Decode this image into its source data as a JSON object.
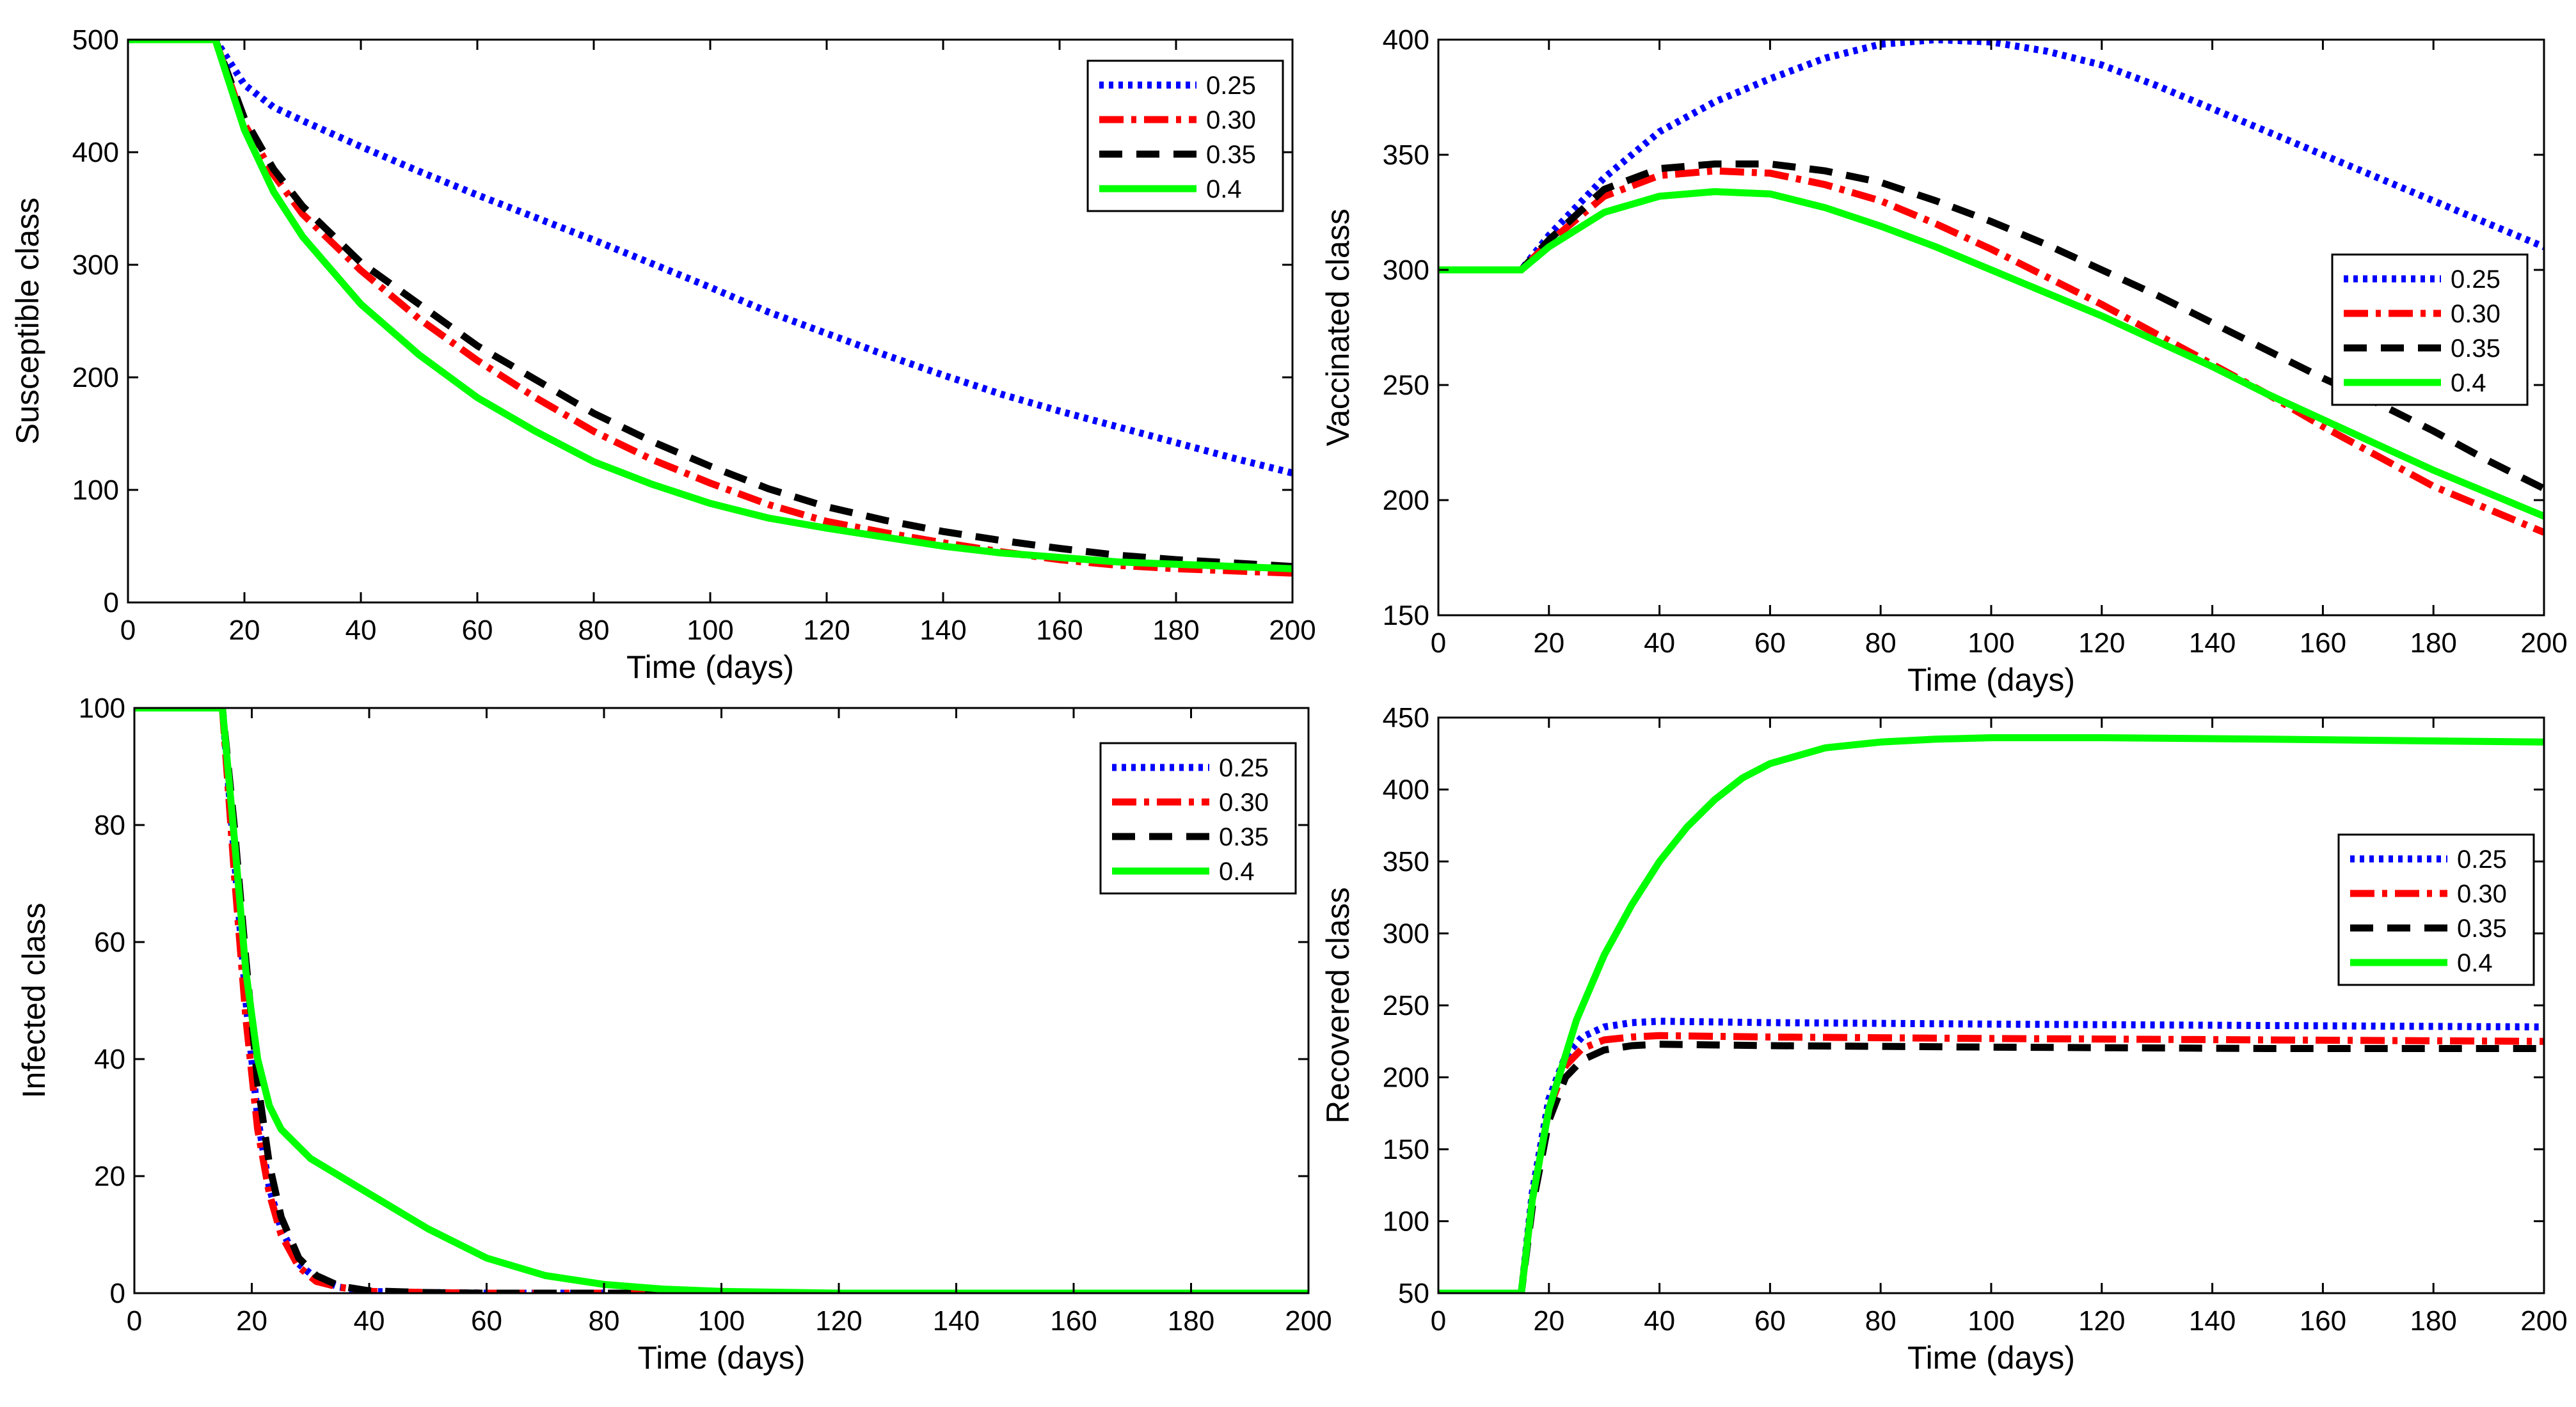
{
  "colors": [
    "#0000ff",
    "#ff0000",
    "#000000",
    "#00ff00"
  ],
  "line_styles": [
    "dotted",
    "dashdot",
    "dashed",
    "solid"
  ],
  "chart_data": [
    {
      "type": "line",
      "name": "susceptible",
      "title": "",
      "xlabel": "Time  (days)",
      "ylabel": "Susceptible class",
      "xlim": [
        0,
        200
      ],
      "ylim": [
        0,
        500
      ],
      "xticks": [
        0,
        20,
        40,
        60,
        80,
        100,
        120,
        140,
        160,
        180,
        200
      ],
      "yticks": [
        0,
        100,
        200,
        300,
        400,
        500
      ],
      "legend_position": "top-right",
      "series": [
        {
          "name": "0.25",
          "x": [
            0,
            15,
            20,
            25,
            30,
            40,
            50,
            60,
            70,
            80,
            90,
            100,
            110,
            120,
            130,
            140,
            150,
            160,
            170,
            180,
            190,
            200
          ],
          "values": [
            500,
            500,
            460,
            440,
            428,
            405,
            383,
            362,
            342,
            322,
            301,
            280,
            258,
            239,
            220,
            202,
            185,
            170,
            156,
            142,
            128,
            115
          ]
        },
        {
          "name": "0.30",
          "x": [
            0,
            15,
            20,
            25,
            30,
            40,
            50,
            60,
            70,
            80,
            90,
            100,
            110,
            120,
            130,
            140,
            150,
            160,
            170,
            180,
            190,
            200
          ],
          "values": [
            500,
            500,
            425,
            380,
            345,
            295,
            252,
            215,
            182,
            152,
            127,
            106,
            87,
            72,
            62,
            53,
            45,
            38,
            33,
            30,
            28,
            26
          ]
        },
        {
          "name": "0.35",
          "x": [
            0,
            15,
            20,
            25,
            30,
            40,
            50,
            60,
            70,
            80,
            90,
            100,
            110,
            120,
            130,
            140,
            150,
            160,
            170,
            180,
            190,
            200
          ],
          "values": [
            500,
            500,
            430,
            385,
            352,
            302,
            265,
            228,
            198,
            168,
            143,
            121,
            101,
            85,
            73,
            63,
            55,
            48,
            42,
            38,
            35,
            32
          ]
        },
        {
          "name": "0.4",
          "x": [
            0,
            15,
            20,
            25,
            30,
            40,
            50,
            60,
            70,
            80,
            90,
            100,
            110,
            120,
            130,
            140,
            150,
            160,
            170,
            180,
            190,
            200
          ],
          "values": [
            500,
            500,
            420,
            365,
            325,
            265,
            220,
            182,
            152,
            125,
            105,
            88,
            75,
            66,
            58,
            50,
            44,
            40,
            36,
            34,
            32,
            30
          ]
        }
      ]
    },
    {
      "type": "line",
      "name": "vaccinated",
      "title": "",
      "xlabel": "Time (days)",
      "ylabel": "Vaccinated class",
      "xlim": [
        0,
        200
      ],
      "ylim": [
        150,
        400
      ],
      "xticks": [
        0,
        20,
        40,
        60,
        80,
        100,
        120,
        140,
        160,
        180,
        200
      ],
      "yticks": [
        150,
        200,
        250,
        300,
        350,
        400
      ],
      "legend_position": "middle-right",
      "series": [
        {
          "name": "0.25",
          "x": [
            0,
            15,
            20,
            30,
            40,
            50,
            60,
            70,
            80,
            90,
            100,
            110,
            120,
            130,
            140,
            150,
            160,
            170,
            180,
            190,
            200
          ],
          "values": [
            300,
            300,
            315,
            340,
            360,
            373,
            383,
            392,
            398,
            400,
            399,
            395,
            389,
            380,
            370,
            360,
            350,
            340,
            330,
            320,
            310
          ]
        },
        {
          "name": "0.30",
          "x": [
            0,
            15,
            20,
            30,
            40,
            50,
            60,
            70,
            80,
            90,
            100,
            110,
            120,
            130,
            140,
            150,
            160,
            170,
            180,
            190,
            200
          ],
          "values": [
            300,
            300,
            312,
            332,
            341,
            343,
            342,
            337,
            330,
            320,
            309,
            297,
            285,
            272,
            259,
            246,
            232,
            219,
            206,
            196,
            186
          ]
        },
        {
          "name": "0.35",
          "x": [
            0,
            15,
            20,
            30,
            40,
            50,
            60,
            70,
            80,
            90,
            100,
            110,
            120,
            130,
            140,
            150,
            160,
            170,
            180,
            190,
            200
          ],
          "values": [
            300,
            300,
            313,
            335,
            344,
            346,
            346,
            343,
            338,
            330,
            321,
            311,
            300,
            289,
            277,
            265,
            253,
            242,
            230,
            217,
            205
          ]
        },
        {
          "name": "0.4",
          "x": [
            0,
            15,
            20,
            30,
            40,
            50,
            60,
            70,
            80,
            90,
            100,
            110,
            120,
            130,
            140,
            150,
            160,
            170,
            180,
            190,
            200
          ],
          "values": [
            300,
            300,
            310,
            325,
            332,
            334,
            333,
            327,
            319,
            310,
            300,
            290,
            280,
            269,
            258,
            246,
            235,
            224,
            213,
            203,
            193
          ]
        }
      ]
    },
    {
      "type": "line",
      "name": "infected",
      "title": "",
      "xlabel": "Time (days)",
      "ylabel": "Infected class",
      "xlim": [
        0,
        200
      ],
      "ylim": [
        0,
        100
      ],
      "xticks": [
        0,
        20,
        40,
        60,
        80,
        100,
        120,
        140,
        160,
        180,
        200
      ],
      "yticks": [
        0,
        20,
        40,
        60,
        80,
        100
      ],
      "legend_position": "top-right",
      "series": [
        {
          "name": "0.25",
          "x": [
            0,
            15,
            17,
            19,
            21,
            23,
            25,
            28,
            31,
            35,
            40,
            50,
            60,
            80,
            100,
            150,
            200
          ],
          "values": [
            100,
            100,
            75,
            50,
            30,
            18,
            11,
            5,
            2.5,
            1,
            0.3,
            0.1,
            0,
            0,
            0,
            0,
            0
          ]
        },
        {
          "name": "0.30",
          "x": [
            0,
            15,
            17,
            19,
            21,
            23,
            25,
            28,
            31,
            35,
            40,
            50,
            60,
            80,
            100,
            150,
            200
          ],
          "values": [
            100,
            100,
            72,
            47,
            28,
            17,
            10,
            4.5,
            2,
            1,
            0.3,
            0.1,
            0,
            0,
            0,
            0,
            0
          ]
        },
        {
          "name": "0.35",
          "x": [
            0,
            15,
            17,
            19,
            21,
            23,
            25,
            28,
            31,
            35,
            40,
            50,
            60,
            80,
            100,
            150,
            200
          ],
          "values": [
            100,
            100,
            80,
            57,
            36,
            22,
            13,
            6,
            3,
            1.2,
            0.4,
            0.1,
            0,
            0,
            0,
            0,
            0
          ]
        },
        {
          "name": "0.4",
          "x": [
            0,
            15,
            17,
            19,
            21,
            23,
            25,
            30,
            35,
            40,
            45,
            50,
            55,
            60,
            70,
            80,
            90,
            100,
            120,
            150,
            200
          ],
          "values": [
            100,
            100,
            78,
            55,
            40,
            32,
            28,
            23,
            20,
            17,
            14,
            11,
            8.5,
            6,
            3,
            1.5,
            0.7,
            0.3,
            0,
            0,
            0
          ]
        }
      ]
    },
    {
      "type": "line",
      "name": "recovered",
      "title": "",
      "xlabel": "Time (days)",
      "ylabel": "Recovered class",
      "xlim": [
        0,
        200
      ],
      "ylim": [
        50,
        450
      ],
      "xticks": [
        0,
        20,
        40,
        60,
        80,
        100,
        120,
        140,
        160,
        180,
        200
      ],
      "yticks": [
        50,
        100,
        150,
        200,
        250,
        300,
        350,
        400,
        450
      ],
      "legend_position": "middle-right",
      "series": [
        {
          "name": "0.25",
          "x": [
            0,
            15,
            17,
            20,
            23,
            26,
            30,
            35,
            40,
            60,
            100,
            150,
            200
          ],
          "values": [
            50,
            50,
            120,
            185,
            215,
            228,
            235,
            238,
            239,
            238,
            237,
            236,
            235
          ]
        },
        {
          "name": "0.30",
          "x": [
            0,
            15,
            17,
            20,
            23,
            26,
            30,
            35,
            40,
            60,
            100,
            150,
            200
          ],
          "values": [
            50,
            50,
            115,
            178,
            208,
            220,
            226,
            228,
            229,
            228,
            227,
            226,
            225
          ]
        },
        {
          "name": "0.35",
          "x": [
            0,
            15,
            17,
            20,
            23,
            26,
            30,
            35,
            40,
            60,
            100,
            150,
            200
          ],
          "values": [
            50,
            50,
            110,
            170,
            200,
            212,
            219,
            222,
            223,
            222,
            221,
            220,
            220
          ]
        },
        {
          "name": "0.4",
          "x": [
            0,
            15,
            17,
            20,
            25,
            30,
            35,
            40,
            45,
            50,
            55,
            60,
            70,
            80,
            90,
            100,
            120,
            150,
            200
          ],
          "values": [
            50,
            50,
            115,
            178,
            240,
            285,
            320,
            350,
            374,
            393,
            408,
            418,
            429,
            433,
            435,
            436,
            436,
            435,
            433
          ]
        }
      ]
    }
  ]
}
